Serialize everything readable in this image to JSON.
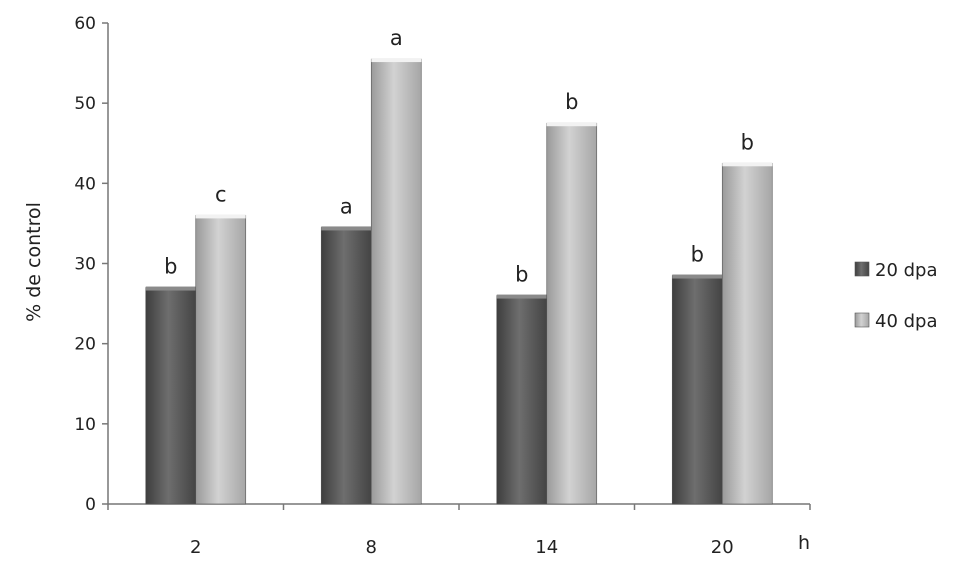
{
  "chart_data": {
    "type": "bar",
    "title": "",
    "xlabel": "h",
    "ylabel": "% de control",
    "ylim": [
      0,
      60
    ],
    "yticks": [
      0,
      10,
      20,
      30,
      40,
      50,
      60
    ],
    "categories": [
      "2",
      "8",
      "14",
      "20"
    ],
    "series": [
      {
        "name": "20 dpa",
        "values": [
          27,
          34.5,
          26,
          28.5
        ],
        "letters": [
          "b",
          "a",
          "b",
          "b"
        ],
        "color": "#5a5a5a"
      },
      {
        "name": "40 dpa",
        "values": [
          36,
          55.5,
          47.5,
          42.5
        ],
        "letters": [
          "c",
          "a",
          "b",
          "b"
        ],
        "color": "#b4b4b4"
      }
    ],
    "grid": false,
    "legend_position": "right"
  }
}
